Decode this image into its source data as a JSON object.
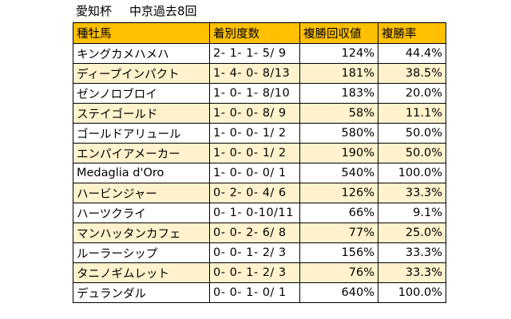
{
  "sheet": {
    "title": "愛知杯",
    "subtitle": "中京過去8回",
    "headers": {
      "sire": "種牡馬",
      "record": "着別度数",
      "return_rate": "複勝回収値",
      "place_rate": "複勝率"
    },
    "rows": [
      {
        "sire": "キングカメハメハ",
        "record": "2- 1- 1- 5/ 9",
        "return_rate": "124%",
        "place_rate": "44.4%"
      },
      {
        "sire": "ディープインパクト",
        "record": "1- 4- 0- 8/13",
        "return_rate": "181%",
        "place_rate": "38.5%"
      },
      {
        "sire": "ゼンノロブロイ",
        "record": "1- 0- 1- 8/10",
        "return_rate": "183%",
        "place_rate": "20.0%"
      },
      {
        "sire": "ステイゴールド",
        "record": "1- 0- 0- 8/ 9",
        "return_rate": "58%",
        "place_rate": "11.1%"
      },
      {
        "sire": "ゴールドアリュール",
        "record": "1- 0- 0- 1/ 2",
        "return_rate": "580%",
        "place_rate": "50.0%"
      },
      {
        "sire": "エンパイアメーカー",
        "record": "1- 0- 0- 1/ 2",
        "return_rate": "190%",
        "place_rate": "50.0%"
      },
      {
        "sire": "Medaglia d'Oro",
        "record": "1- 0- 0- 0/ 1",
        "return_rate": "540%",
        "place_rate": "100.0%"
      },
      {
        "sire": "ハービンジャー",
        "record": "0- 2- 0- 4/ 6",
        "return_rate": "126%",
        "place_rate": "33.3%"
      },
      {
        "sire": "ハーツクライ",
        "record": "0- 1- 0-10/11",
        "return_rate": "66%",
        "place_rate": "9.1%"
      },
      {
        "sire": "マンハッタンカフェ",
        "record": "0- 0- 2- 6/ 8",
        "return_rate": "77%",
        "place_rate": "25.0%"
      },
      {
        "sire": "ルーラーシップ",
        "record": "0- 0- 1- 2/ 3",
        "return_rate": "156%",
        "place_rate": "33.3%"
      },
      {
        "sire": "タニノギムレット",
        "record": "0- 0- 1- 2/ 3",
        "return_rate": "76%",
        "place_rate": "33.3%"
      },
      {
        "sire": "デュランダル",
        "record": "0- 0- 1- 0/ 1",
        "return_rate": "640%",
        "place_rate": "100.0%"
      }
    ]
  },
  "colors": {
    "header_fill": "#ffc000",
    "shade_fill": "#fff2cc",
    "border": "#000000"
  }
}
